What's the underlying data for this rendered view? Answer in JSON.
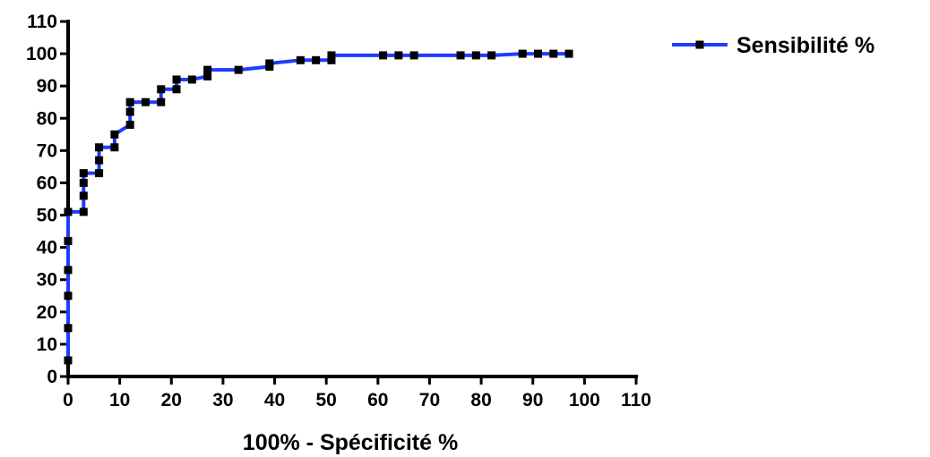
{
  "chart_data": {
    "type": "line",
    "xlabel": "100% - Spécificité %",
    "ylabel": "",
    "xlim": [
      0,
      110
    ],
    "ylim": [
      0,
      110
    ],
    "xticks": [
      0,
      10,
      20,
      30,
      40,
      50,
      60,
      70,
      80,
      90,
      100,
      110
    ],
    "yticks": [
      0,
      10,
      20,
      30,
      40,
      50,
      60,
      70,
      80,
      90,
      100,
      110
    ],
    "grid": false,
    "legend_position": "top-right",
    "line_color": "#1f3cff",
    "marker_color": "#000000",
    "series": [
      {
        "name": "Sensibilité %",
        "x": [
          0,
          0,
          0,
          0,
          0,
          0,
          3,
          3,
          3,
          3,
          6,
          6,
          6,
          9,
          9,
          12,
          12,
          12,
          15,
          18,
          18,
          21,
          21,
          24,
          27,
          27,
          33,
          39,
          39,
          45,
          48,
          51,
          51,
          61,
          64,
          67,
          76,
          79,
          82,
          88,
          91,
          94,
          97
        ],
        "y": [
          5,
          15,
          25,
          33,
          42,
          51,
          51,
          56,
          60,
          63,
          63,
          67,
          71,
          71,
          75,
          78,
          82,
          85,
          85,
          85,
          89,
          89,
          92,
          92,
          93,
          95,
          95,
          96,
          97,
          98,
          98,
          98,
          99.5,
          99.5,
          99.5,
          99.5,
          99.5,
          99.5,
          99.5,
          100,
          100,
          100,
          100
        ]
      }
    ]
  }
}
